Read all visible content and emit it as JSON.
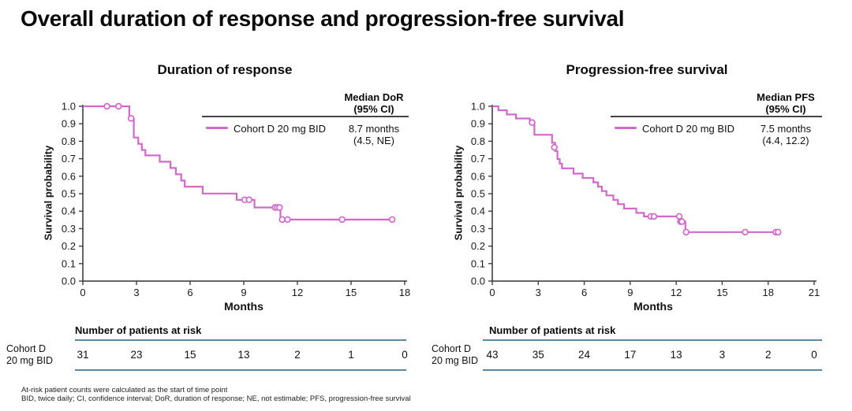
{
  "slide": {
    "title": "Overall duration of response and progression-free survival",
    "footnotes": [
      "At-risk patient counts were calculated as the start of time point",
      "BID, twice daily; CI, confidence interval; DoR, duration of response; NE, not estimable; PFS, progression-free survival"
    ]
  },
  "colors": {
    "curve": "#d169cb",
    "risk_rule": "#5b87a0",
    "axis": "#333333",
    "legend_rule": "#444444"
  },
  "chart_data": [
    {
      "type": "line",
      "variant": "kaplan-meier-step",
      "title": "Duration of response",
      "xlabel": "Months",
      "ylabel": "Survival probability",
      "xlim": [
        0,
        18
      ],
      "ylim": [
        0.0,
        1.0
      ],
      "x_ticks": [
        0,
        3,
        6,
        9,
        12,
        15,
        18
      ],
      "y_ticks": [
        "1.0",
        "0.9",
        "0.8",
        "0.7",
        "0.6",
        "0.5",
        "0.4",
        "0.3",
        "0.2",
        "0.1",
        "0.0"
      ],
      "grid": false,
      "legend": {
        "position": "top-right-inside",
        "header_line1": "Median DoR",
        "header_line2": "(95% CI)",
        "series_label": "Cohort D 20 mg BID",
        "median_value": "8.7 months",
        "ci": "(4.5, NE)"
      },
      "series": [
        {
          "name": "Cohort D 20 mg BID",
          "steps": [
            [
              0,
              1.0
            ],
            [
              2.6,
              1.0
            ],
            [
              2.6,
              0.931
            ],
            [
              2.85,
              0.931
            ],
            [
              2.85,
              0.821
            ],
            [
              3.1,
              0.821
            ],
            [
              3.1,
              0.785
            ],
            [
              3.3,
              0.785
            ],
            [
              3.3,
              0.75
            ],
            [
              3.5,
              0.75
            ],
            [
              3.5,
              0.719
            ],
            [
              4.3,
              0.719
            ],
            [
              4.3,
              0.683
            ],
            [
              4.9,
              0.683
            ],
            [
              4.9,
              0.647
            ],
            [
              5.2,
              0.647
            ],
            [
              5.2,
              0.611
            ],
            [
              5.5,
              0.611
            ],
            [
              5.5,
              0.575
            ],
            [
              5.7,
              0.575
            ],
            [
              5.7,
              0.54
            ],
            [
              6.7,
              0.54
            ],
            [
              6.7,
              0.501
            ],
            [
              8.6,
              0.501
            ],
            [
              8.6,
              0.465
            ],
            [
              9.6,
              0.465
            ],
            [
              9.6,
              0.421
            ],
            [
              11.05,
              0.421
            ],
            [
              11.05,
              0.352
            ],
            [
              17.3,
              0.352
            ]
          ],
          "censors": [
            [
              1.35,
              1.0
            ],
            [
              2.0,
              1.0
            ],
            [
              2.7,
              0.931
            ],
            [
              9.05,
              0.465
            ],
            [
              9.3,
              0.465
            ],
            [
              10.75,
              0.421
            ],
            [
              10.87,
              0.421
            ],
            [
              11.0,
              0.421
            ],
            [
              11.15,
              0.352
            ],
            [
              11.45,
              0.352
            ],
            [
              14.5,
              0.352
            ],
            [
              17.3,
              0.352
            ]
          ]
        }
      ],
      "at_risk": {
        "header": "Number of patients at risk",
        "row_label_line1": "Cohort D",
        "row_label_line2": "20 mg BID",
        "times": [
          0,
          3,
          6,
          9,
          12,
          15,
          18
        ],
        "counts": [
          "31",
          "23",
          "15",
          "13",
          "2",
          "1",
          "0"
        ]
      }
    },
    {
      "type": "line",
      "variant": "kaplan-meier-step",
      "title": "Progression-free survival",
      "xlabel": "Months",
      "ylabel": "Survival probability",
      "xlim": [
        0,
        21
      ],
      "ylim": [
        0.0,
        1.0
      ],
      "x_ticks": [
        0,
        3,
        6,
        9,
        12,
        15,
        18,
        21
      ],
      "y_ticks": [
        "1.0",
        "0.9",
        "0.8",
        "0.7",
        "0.6",
        "0.5",
        "0.4",
        "0.3",
        "0.2",
        "0.1",
        "0.0"
      ],
      "grid": false,
      "legend": {
        "position": "top-right-inside",
        "header_line1": "Median PFS",
        "header_line2": "(95% CI)",
        "series_label": "Cohort D 20 mg BID",
        "median_value": "7.5 months",
        "ci": "(4.4, 12.2)"
      },
      "series": [
        {
          "name": "Cohort D 20 mg BID",
          "steps": [
            [
              0,
              1.0
            ],
            [
              0.4,
              1.0
            ],
            [
              0.4,
              0.977
            ],
            [
              0.95,
              0.977
            ],
            [
              0.95,
              0.953
            ],
            [
              1.55,
              0.953
            ],
            [
              1.55,
              0.93
            ],
            [
              2.45,
              0.93
            ],
            [
              2.45,
              0.907
            ],
            [
              2.75,
              0.907
            ],
            [
              2.75,
              0.837
            ],
            [
              3.9,
              0.837
            ],
            [
              3.9,
              0.791
            ],
            [
              4.1,
              0.791
            ],
            [
              4.1,
              0.744
            ],
            [
              4.25,
              0.744
            ],
            [
              4.25,
              0.698
            ],
            [
              4.4,
              0.698
            ],
            [
              4.4,
              0.672
            ],
            [
              4.55,
              0.672
            ],
            [
              4.55,
              0.645
            ],
            [
              5.3,
              0.645
            ],
            [
              5.3,
              0.615
            ],
            [
              5.9,
              0.615
            ],
            [
              5.9,
              0.59
            ],
            [
              6.6,
              0.59
            ],
            [
              6.6,
              0.565
            ],
            [
              6.9,
              0.565
            ],
            [
              6.9,
              0.54
            ],
            [
              7.15,
              0.54
            ],
            [
              7.15,
              0.515
            ],
            [
              7.45,
              0.515
            ],
            [
              7.45,
              0.49
            ],
            [
              7.9,
              0.49
            ],
            [
              7.9,
              0.465
            ],
            [
              8.2,
              0.465
            ],
            [
              8.2,
              0.44
            ],
            [
              8.6,
              0.44
            ],
            [
              8.6,
              0.415
            ],
            [
              9.4,
              0.415
            ],
            [
              9.4,
              0.39
            ],
            [
              9.9,
              0.39
            ],
            [
              9.9,
              0.37
            ],
            [
              12.25,
              0.37
            ],
            [
              12.25,
              0.34
            ],
            [
              12.6,
              0.34
            ],
            [
              12.6,
              0.28
            ],
            [
              18.65,
              0.28
            ]
          ],
          "censors": [
            [
              2.6,
              0.907
            ],
            [
              4.05,
              0.765
            ],
            [
              10.35,
              0.37
            ],
            [
              10.55,
              0.37
            ],
            [
              12.2,
              0.37
            ],
            [
              12.28,
              0.34
            ],
            [
              12.38,
              0.34
            ],
            [
              12.65,
              0.28
            ],
            [
              16.5,
              0.28
            ],
            [
              18.5,
              0.28
            ],
            [
              18.65,
              0.28
            ]
          ]
        }
      ],
      "at_risk": {
        "header": "Number of patients at risk",
        "row_label_line1": "Cohort D",
        "row_label_line2": "20 mg BID",
        "times": [
          0,
          3,
          6,
          9,
          12,
          15,
          18,
          21
        ],
        "counts": [
          "43",
          "35",
          "24",
          "17",
          "13",
          "3",
          "2",
          "0"
        ]
      }
    }
  ]
}
